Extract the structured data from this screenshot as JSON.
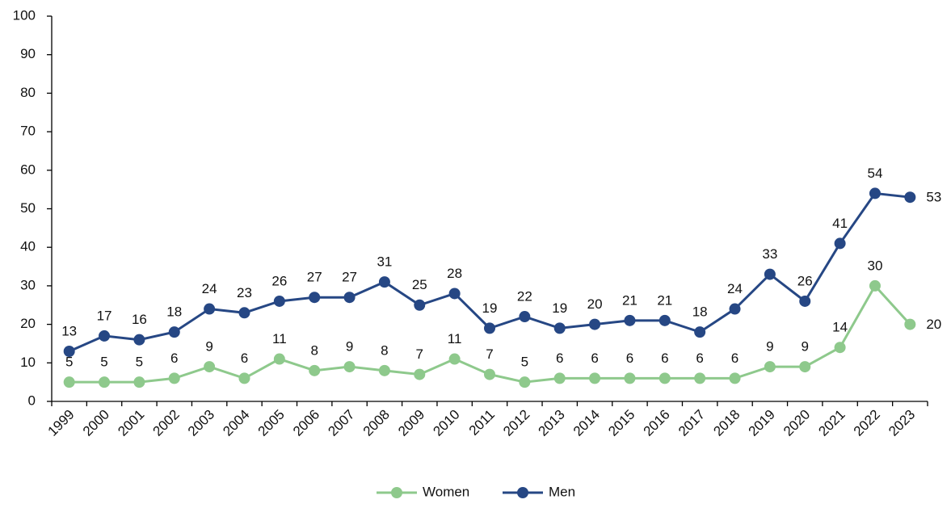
{
  "chart_data": {
    "type": "line",
    "categories": [
      "1999",
      "2000",
      "2001",
      "2002",
      "2003",
      "2004",
      "2005",
      "2006",
      "2007",
      "2008",
      "2009",
      "2010",
      "2011",
      "2012",
      "2013",
      "2014",
      "2015",
      "2016",
      "2017",
      "2018",
      "2019",
      "2020",
      "2021",
      "2022",
      "2023"
    ],
    "series": [
      {
        "name": "Women",
        "color": "#8ec98c",
        "values": [
          5,
          5,
          5,
          6,
          9,
          6,
          11,
          8,
          9,
          8,
          7,
          11,
          7,
          5,
          6,
          6,
          6,
          6,
          6,
          6,
          9,
          9,
          14,
          30,
          20
        ]
      },
      {
        "name": "Men",
        "color": "#264784",
        "values": [
          13,
          17,
          16,
          18,
          24,
          23,
          26,
          27,
          27,
          31,
          25,
          28,
          19,
          22,
          19,
          20,
          21,
          21,
          18,
          24,
          33,
          26,
          41,
          54,
          53
        ]
      }
    ],
    "ylim": [
      0,
      100
    ],
    "yticks": [
      0,
      10,
      20,
      30,
      40,
      50,
      60,
      70,
      80,
      90,
      100
    ],
    "grid": false,
    "legend": "bottom"
  }
}
